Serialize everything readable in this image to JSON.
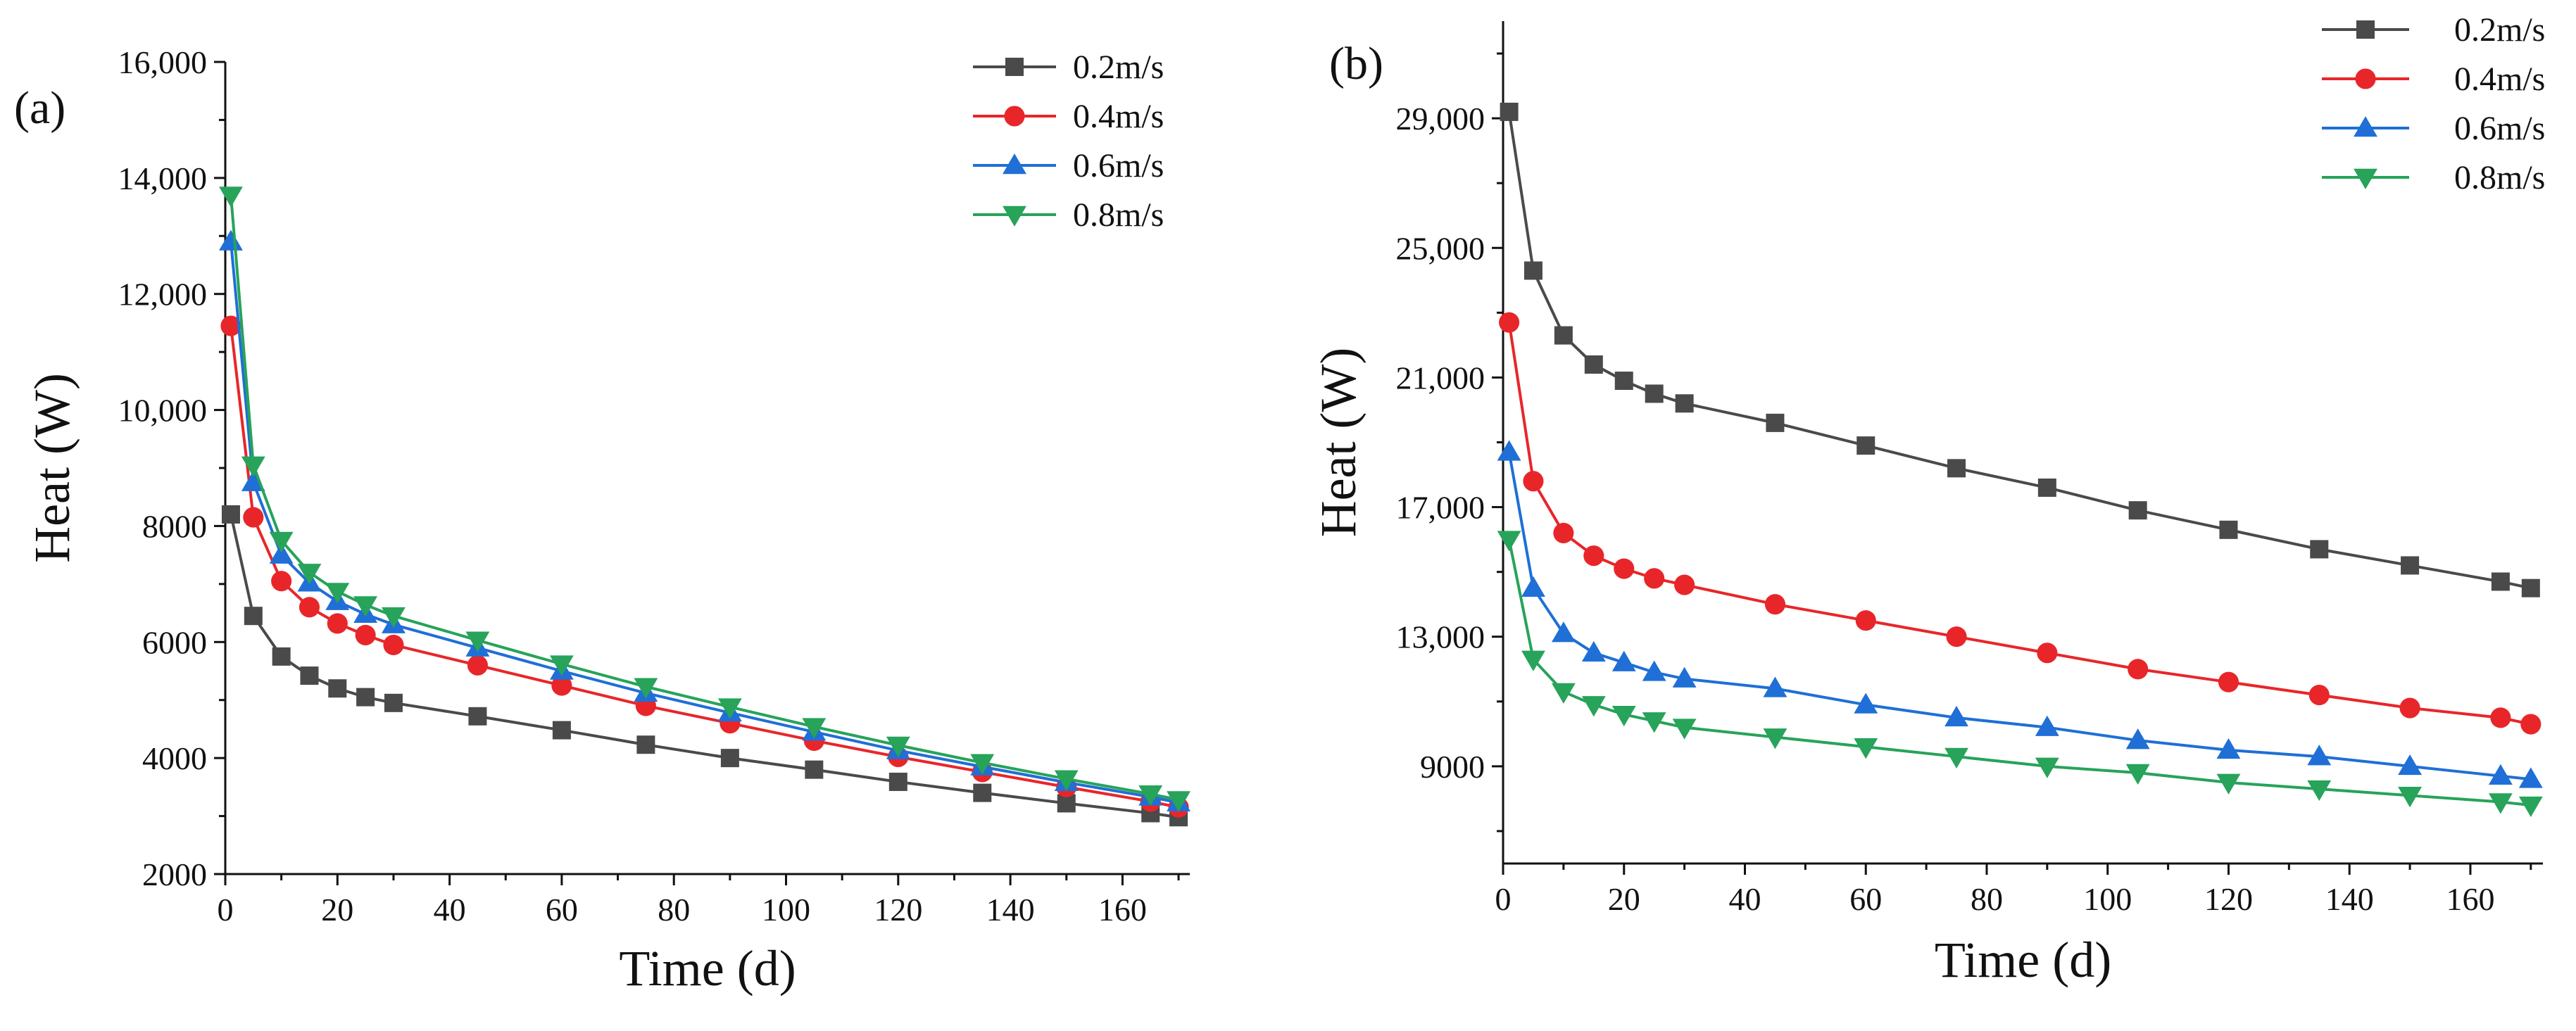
{
  "chart_data": [
    {
      "type": "line",
      "panel_label": "(a)",
      "title": "",
      "xlabel": "Time (d)",
      "ylabel": "Heat (W)",
      "xlim": [
        0,
        172
      ],
      "ylim": [
        2000,
        16000
      ],
      "xticks": [
        0,
        20,
        40,
        60,
        80,
        100,
        120,
        140,
        160
      ],
      "xtick_labels": [
        "0",
        "20",
        "40",
        "60",
        "80",
        "100",
        "120",
        "140",
        "160"
      ],
      "yticks": [
        2000,
        4000,
        6000,
        8000,
        10000,
        12000,
        14000,
        16000
      ],
      "ytick_labels": [
        "2000",
        "4000",
        "6000",
        "8000",
        "10,000",
        "12,000",
        "14,000",
        "16,000"
      ],
      "legend_position": "top-right",
      "x": [
        1,
        5,
        10,
        15,
        20,
        25,
        30,
        45,
        60,
        75,
        90,
        105,
        120,
        135,
        150,
        165,
        170
      ],
      "series": [
        {
          "name": "0.2m/s",
          "color": "#4a4a4a",
          "marker": "square",
          "values": [
            8200,
            6450,
            5750,
            5420,
            5200,
            5050,
            4950,
            4720,
            4480,
            4230,
            4000,
            3800,
            3590,
            3400,
            3220,
            3050,
            2980
          ]
        },
        {
          "name": "0.4m/s",
          "color": "#e8262a",
          "marker": "circle",
          "values": [
            11450,
            8150,
            7050,
            6600,
            6320,
            6120,
            5950,
            5600,
            5250,
            4900,
            4600,
            4300,
            4020,
            3760,
            3500,
            3250,
            3150
          ]
        },
        {
          "name": "0.6m/s",
          "color": "#1f6fd6",
          "marker": "triangle-up",
          "values": [
            12900,
            8750,
            7500,
            7020,
            6700,
            6480,
            6300,
            5900,
            5500,
            5120,
            4780,
            4450,
            4130,
            3850,
            3580,
            3330,
            3230
          ]
        },
        {
          "name": "0.8m/s",
          "color": "#27a35a",
          "marker": "triangle-down",
          "values": [
            13700,
            9050,
            7750,
            7200,
            6870,
            6640,
            6450,
            6030,
            5620,
            5230,
            4880,
            4540,
            4220,
            3920,
            3640,
            3380,
            3280
          ]
        }
      ]
    },
    {
      "type": "line",
      "panel_label": "(b)",
      "title": "",
      "xlabel": "Time (d)",
      "ylabel": "Heat (W)",
      "xlim": [
        0,
        172
      ],
      "ylim": [
        6000,
        32000
      ],
      "xticks": [
        0,
        20,
        40,
        60,
        80,
        100,
        120,
        140,
        160
      ],
      "xtick_labels": [
        "0",
        "20",
        "40",
        "60",
        "80",
        "100",
        "120",
        "140",
        "160"
      ],
      "yticks": [
        9000,
        13000,
        17000,
        21000,
        25000,
        29000
      ],
      "ytick_labels": [
        "9000",
        "13,000",
        "17,000",
        "21,000",
        "25,000",
        "29,000"
      ],
      "legend_position": "top-right",
      "x": [
        1,
        5,
        10,
        15,
        20,
        25,
        30,
        45,
        60,
        75,
        90,
        105,
        120,
        135,
        150,
        165,
        170
      ],
      "series": [
        {
          "name": "0.2m/s",
          "color": "#4a4a4a",
          "marker": "square",
          "values": [
            29200,
            24300,
            22300,
            21400,
            20900,
            20500,
            20200,
            19600,
            18900,
            18200,
            17600,
            16900,
            16300,
            15700,
            15200,
            14700,
            14500
          ]
        },
        {
          "name": "0.4m/s",
          "color": "#e8262a",
          "marker": "circle",
          "values": [
            22700,
            17800,
            16200,
            15500,
            15100,
            14800,
            14600,
            14000,
            13500,
            13000,
            12500,
            12000,
            11600,
            11200,
            10800,
            10500,
            10300
          ]
        },
        {
          "name": "0.6m/s",
          "color": "#1f6fd6",
          "marker": "triangle-up",
          "values": [
            18700,
            14500,
            13100,
            12500,
            12200,
            11900,
            11700,
            11400,
            10900,
            10500,
            10200,
            9800,
            9500,
            9300,
            9000,
            8700,
            8600
          ]
        },
        {
          "name": "0.8m/s",
          "color": "#27a35a",
          "marker": "triangle-down",
          "values": [
            16000,
            12300,
            11300,
            10900,
            10600,
            10400,
            10200,
            9900,
            9600,
            9300,
            9000,
            8800,
            8500,
            8300,
            8100,
            7900,
            7800
          ]
        }
      ]
    }
  ]
}
